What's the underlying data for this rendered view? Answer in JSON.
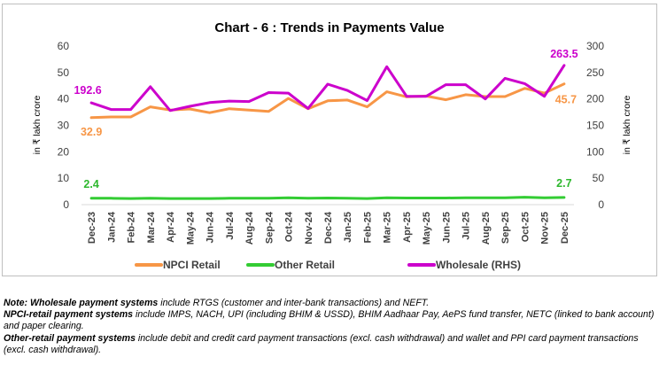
{
  "chart_data": {
    "type": "line",
    "title": "Chart - 6 : Trends in Payments Value",
    "ylabel": "in ₹ lakh crore",
    "y2label": "in ₹ lakh crore",
    "ylim": [
      0,
      60
    ],
    "y2lim": [
      0,
      300
    ],
    "yticks": [
      0,
      10,
      20,
      30,
      40,
      50,
      60
    ],
    "y2ticks": [
      0,
      50,
      100,
      150,
      200,
      250,
      300
    ],
    "grid": false,
    "legend": "bottom",
    "categories": [
      "Dec-23",
      "Jan-24",
      "Feb-24",
      "Mar-24",
      "Apr-24",
      "May-24",
      "Jun-24",
      "Jul-24",
      "Aug-24",
      "Sep-24",
      "Oct-24",
      "Nov-24",
      "Dec-24",
      "Jan-25",
      "Feb-25",
      "Mar-25",
      "Apr-25",
      "May-25",
      "Jun-25",
      "Jul-25",
      "Aug-25",
      "Sep-25",
      "Oct-25",
      "Nov-25",
      "Dec-25"
    ],
    "series": [
      {
        "name": "NPCI Retail",
        "axis": "left",
        "color": "#f79646",
        "values": [
          32.9,
          33.2,
          33.2,
          37.0,
          35.8,
          36.2,
          34.8,
          36.3,
          35.8,
          35.3,
          40.2,
          36.3,
          39.3,
          39.6,
          37.0,
          42.7,
          40.8,
          41.1,
          39.7,
          41.6,
          40.9,
          40.9,
          44.0,
          42.2,
          45.7
        ]
      },
      {
        "name": "Other Retail",
        "axis": "left",
        "color": "#33cc33",
        "values": [
          2.4,
          2.4,
          2.3,
          2.4,
          2.3,
          2.3,
          2.3,
          2.4,
          2.4,
          2.4,
          2.6,
          2.4,
          2.5,
          2.4,
          2.3,
          2.6,
          2.5,
          2.5,
          2.5,
          2.6,
          2.6,
          2.6,
          2.8,
          2.6,
          2.7
        ]
      },
      {
        "name": "Wholesale (RHS)",
        "axis": "right",
        "color": "#cc00cc",
        "values": [
          192.6,
          180,
          180,
          223,
          178,
          186,
          193,
          196,
          195,
          212,
          211,
          182,
          228,
          216,
          197,
          261,
          205,
          205,
          227,
          227,
          200,
          239,
          229,
          205,
          263.5
        ]
      }
    ],
    "annotations": [
      {
        "series": 2,
        "index": 0,
        "text": "192.6"
      },
      {
        "series": 2,
        "index": 24,
        "text": "263.5"
      },
      {
        "series": 0,
        "index": 0,
        "text": "32.9"
      },
      {
        "series": 0,
        "index": 24,
        "text": "45.7"
      },
      {
        "series": 1,
        "index": 0,
        "text": "2.4"
      },
      {
        "series": 1,
        "index": 24,
        "text": "2.7"
      }
    ]
  },
  "notes": [
    {
      "label": "Note: Wholesale payment systems",
      "text": " include RTGS (customer and inter-bank transactions) and NEFT."
    },
    {
      "label": "NPCI-retail payment systems",
      "text": " include IMPS, NACH, UPI (including BHIM & USSD), BHIM Aadhaar Pay, AePS fund transfer, NETC (linked to bank account) and paper clearing."
    },
    {
      "label": "Other-retail payment systems",
      "text": " include debit and credit card payment transactions (excl. cash withdrawal) and wallet and PPI card payment transactions (excl. cash withdrawal)."
    }
  ]
}
